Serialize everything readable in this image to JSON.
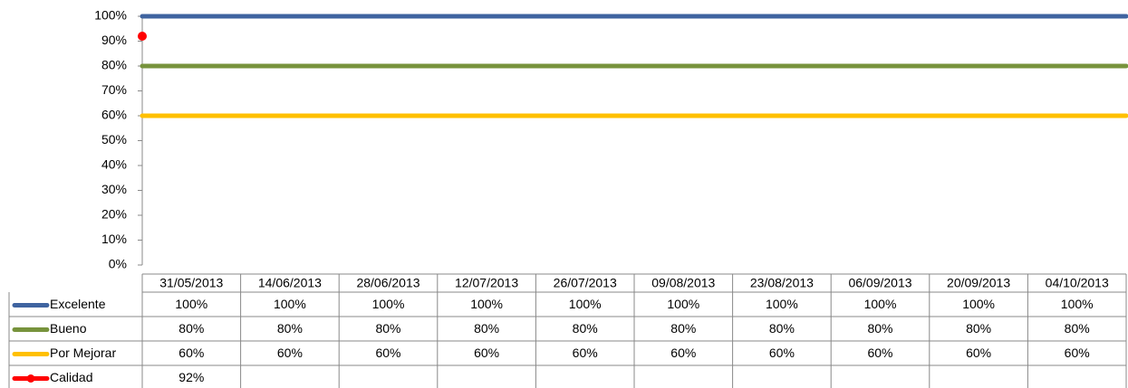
{
  "chart_data": {
    "type": "line",
    "categories": [
      "31/05/2013",
      "14/06/2013",
      "28/06/2013",
      "12/07/2013",
      "26/07/2013",
      "09/08/2013",
      "23/08/2013",
      "06/09/2013",
      "20/09/2013",
      "04/10/2013"
    ],
    "series": [
      {
        "name": "Excelente",
        "color": "#3f64a0",
        "values": [
          100,
          100,
          100,
          100,
          100,
          100,
          100,
          100,
          100,
          100
        ],
        "value_labels": [
          "100%",
          "100%",
          "100%",
          "100%",
          "100%",
          "100%",
          "100%",
          "100%",
          "100%",
          "100%"
        ]
      },
      {
        "name": "Bueno",
        "color": "#77933c",
        "values": [
          80,
          80,
          80,
          80,
          80,
          80,
          80,
          80,
          80,
          80
        ],
        "value_labels": [
          "80%",
          "80%",
          "80%",
          "80%",
          "80%",
          "80%",
          "80%",
          "80%",
          "80%",
          "80%"
        ]
      },
      {
        "name": "Por Mejorar",
        "color": "#ffc000",
        "values": [
          60,
          60,
          60,
          60,
          60,
          60,
          60,
          60,
          60,
          60
        ],
        "value_labels": [
          "60%",
          "60%",
          "60%",
          "60%",
          "60%",
          "60%",
          "60%",
          "60%",
          "60%",
          "60%"
        ]
      },
      {
        "name": "Calidad",
        "color": "#ff0000",
        "values": [
          92,
          null,
          null,
          null,
          null,
          null,
          null,
          null,
          null,
          null
        ],
        "value_labels": [
          "92%",
          null,
          null,
          null,
          null,
          null,
          null,
          null,
          null,
          null
        ]
      }
    ],
    "ylim": [
      0,
      100
    ],
    "yticks": [
      {
        "value": 0,
        "label": "0%"
      },
      {
        "value": 10,
        "label": "10%"
      },
      {
        "value": 20,
        "label": "20%"
      },
      {
        "value": 30,
        "label": "30%"
      },
      {
        "value": 40,
        "label": "40%"
      },
      {
        "value": 50,
        "label": "50%"
      },
      {
        "value": 60,
        "label": "60%"
      },
      {
        "value": 70,
        "label": "70%"
      },
      {
        "value": 80,
        "label": "80%"
      },
      {
        "value": 90,
        "label": "90%"
      },
      {
        "value": 100,
        "label": "100%"
      }
    ]
  }
}
